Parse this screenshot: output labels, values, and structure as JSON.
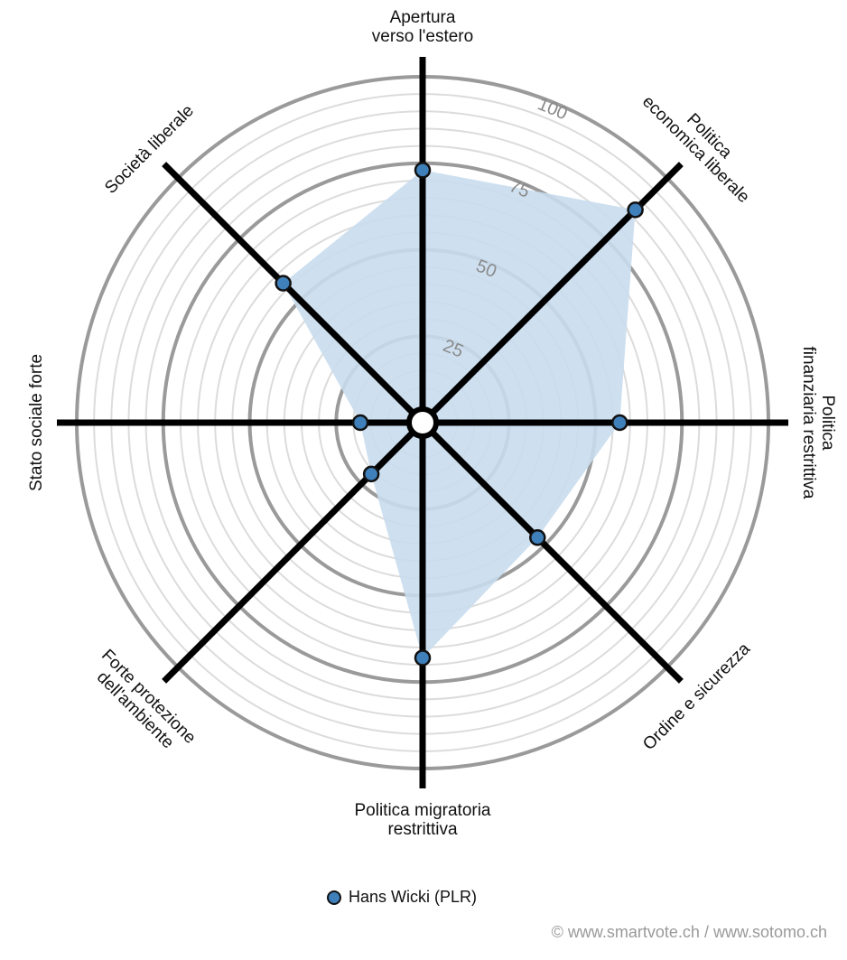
{
  "chart_data": {
    "type": "radar",
    "axes": [
      {
        "label": [
          "Apertura",
          "verso l'estero"
        ],
        "value": 73
      },
      {
        "label": [
          "Politica",
          "economica liberale"
        ],
        "value": 87
      },
      {
        "label": [
          "Politica",
          "finanziaria restrittiva"
        ],
        "value": 57
      },
      {
        "label": [
          "Ordine e sicurezza"
        ],
        "value": 47
      },
      {
        "label": [
          "Politica migratoria",
          "restrittiva"
        ],
        "value": 68
      },
      {
        "label": [
          "Forte protezione",
          "dell'ambiente"
        ],
        "value": 21
      },
      {
        "label": [
          "Stato sociale forte"
        ],
        "value": 18
      },
      {
        "label": [
          "Società liberale"
        ],
        "value": 57
      }
    ],
    "series": [
      {
        "name": "Hans Wicki (PLR)",
        "color": "#3f7fba"
      }
    ],
    "range": [
      0,
      100
    ],
    "tick_labels": [
      "25",
      "50",
      "75",
      "100"
    ],
    "fill_color": "#c9ddee",
    "grid": true,
    "legend_position": "bottom-center"
  },
  "credits": "© www.smartvote.ch / www.sotomo.ch"
}
